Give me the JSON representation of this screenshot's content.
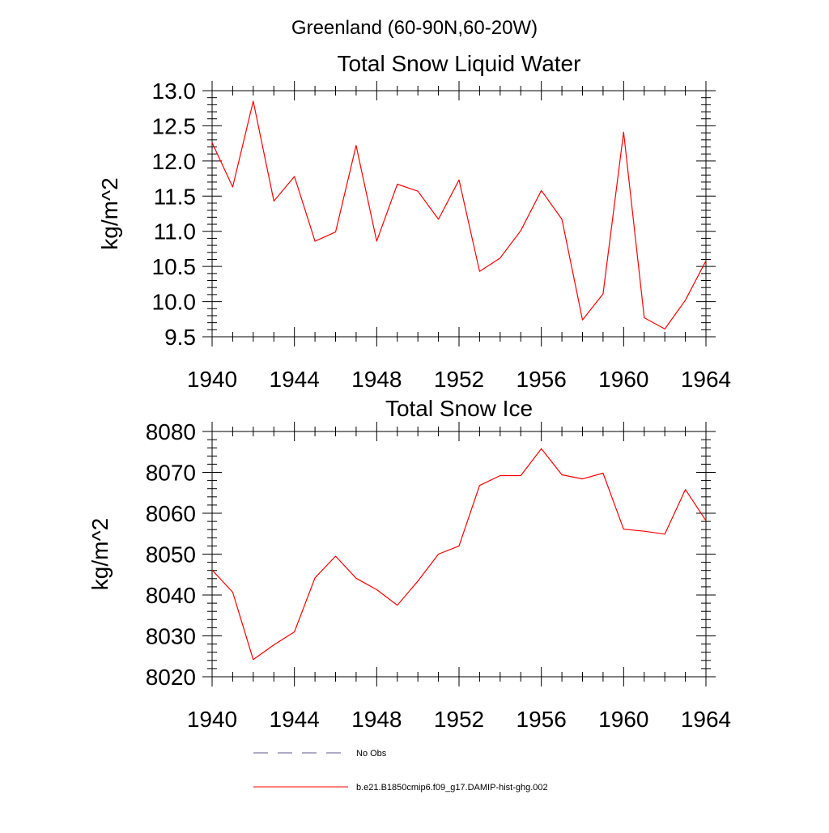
{
  "page_title": "Greenland (60-90N,60-20W)",
  "chart_data": [
    {
      "type": "line",
      "title": "Total Snow Liquid Water",
      "ylabel": "kg/m^2",
      "xlabel": "",
      "xlim": [
        1940,
        1964
      ],
      "ylim": [
        9.5,
        13.0
      ],
      "x_ticks": [
        "1940",
        "1944",
        "1948",
        "1952",
        "1956",
        "1960",
        "1964"
      ],
      "y_ticks": [
        "9.5",
        "10.0",
        "10.5",
        "11.0",
        "11.5",
        "12.0",
        "12.5",
        "13.0"
      ],
      "x": [
        1940,
        1941,
        1942,
        1943,
        1944,
        1945,
        1946,
        1947,
        1948,
        1949,
        1950,
        1951,
        1952,
        1953,
        1954,
        1955,
        1956,
        1957,
        1958,
        1959,
        1960,
        1961,
        1962,
        1963,
        1964
      ],
      "series": [
        {
          "color": "#ff0000",
          "values": [
            12.26,
            11.63,
            12.85,
            11.43,
            11.78,
            10.86,
            10.99,
            12.22,
            10.86,
            11.67,
            11.57,
            11.17,
            11.73,
            10.43,
            10.62,
            11.01,
            11.58,
            11.17,
            9.74,
            10.11,
            12.41,
            9.77,
            9.61,
            10.02,
            10.58
          ]
        }
      ]
    },
    {
      "type": "line",
      "title": "Total Snow Ice",
      "ylabel": "kg/m^2",
      "xlabel": "",
      "xlim": [
        1940,
        1964
      ],
      "ylim": [
        8020,
        8080
      ],
      "x_ticks": [
        "1940",
        "1944",
        "1948",
        "1952",
        "1956",
        "1960",
        "1964"
      ],
      "y_ticks": [
        "8020",
        "8030",
        "8040",
        "8050",
        "8060",
        "8070",
        "8080"
      ],
      "x": [
        1940,
        1941,
        1942,
        1943,
        1944,
        1945,
        1946,
        1947,
        1948,
        1949,
        1950,
        1951,
        1952,
        1953,
        1954,
        1955,
        1956,
        1957,
        1958,
        1959,
        1960,
        1961,
        1962,
        1963,
        1964
      ],
      "series": [
        {
          "color": "#ff0000",
          "values": [
            8046.1,
            8040.7,
            8024.2,
            8027.8,
            8031.0,
            8044.2,
            8049.5,
            8044.1,
            8041.3,
            8037.5,
            8043.4,
            8050.0,
            8052.0,
            8066.8,
            8069.2,
            8069.2,
            8075.8,
            8069.4,
            8068.4,
            8069.8,
            8056.1,
            8055.6,
            8054.9,
            8065.8,
            8058.2
          ]
        }
      ]
    }
  ],
  "legend": {
    "placement": "bottom-center",
    "items": [
      {
        "label": "No Obs",
        "color": "#5a5a8a",
        "style": "dashed"
      },
      {
        "label": "b.e21.B1850cmip6.f09_g17.DAMIP-hist-ghg.002",
        "color": "#ff0000",
        "style": "solid"
      }
    ]
  }
}
